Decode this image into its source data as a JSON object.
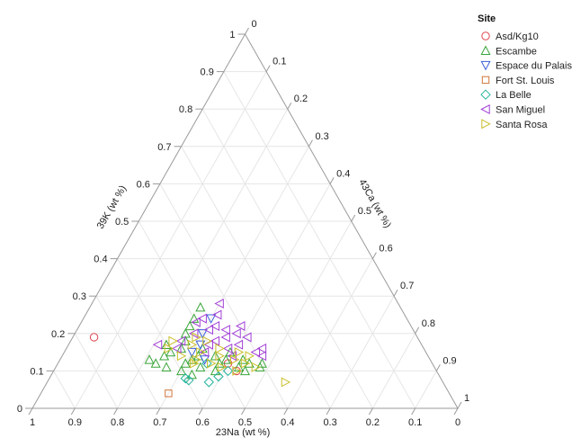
{
  "chart_data": {
    "type": "scatter",
    "subtype": "ternary",
    "axes": {
      "bottom": {
        "label": "23Na (wt %)",
        "ticks": [
          "1",
          "0.9",
          "0.8",
          "0.7",
          "0.6",
          "0.5",
          "0.4",
          "0.3",
          "0.2",
          "0.1",
          "0"
        ]
      },
      "left": {
        "label": "39K (wt %)",
        "ticks": [
          "0",
          "0.1",
          "0.2",
          "0.3",
          "0.4",
          "0.5",
          "0.6",
          "0.7",
          "0.8",
          "0.9",
          "1"
        ]
      },
      "right": {
        "label": "43Ca (wt %)",
        "ticks": [
          "0",
          "0.1",
          "0.2",
          "0.3",
          "0.4",
          "0.5",
          "0.6",
          "0.7",
          "0.8",
          "0.9",
          "1"
        ]
      }
    },
    "grid": true,
    "legend": {
      "title": "Site",
      "position": "top-right"
    },
    "series": [
      {
        "name": "Asd/Kg10",
        "marker": "circle",
        "color": "#e0454f",
        "points": [
          {
            "K": 0.19,
            "Na": 0.76
          },
          {
            "K": 0.1,
            "Na": 0.47
          },
          {
            "K": 0.12,
            "Na": 0.48
          }
        ]
      },
      {
        "name": "Escambe",
        "marker": "triangle-up",
        "color": "#3aa53a",
        "points": [
          {
            "K": 0.27,
            "Na": 0.47
          },
          {
            "K": 0.24,
            "Na": 0.5
          },
          {
            "K": 0.22,
            "Na": 0.52
          },
          {
            "K": 0.2,
            "Na": 0.54
          },
          {
            "K": 0.18,
            "Na": 0.55
          },
          {
            "K": 0.16,
            "Na": 0.57
          },
          {
            "K": 0.15,
            "Na": 0.6
          },
          {
            "K": 0.14,
            "Na": 0.62
          },
          {
            "K": 0.13,
            "Na": 0.66
          },
          {
            "K": 0.12,
            "Na": 0.65
          },
          {
            "K": 0.11,
            "Na": 0.63
          },
          {
            "K": 0.1,
            "Na": 0.6
          },
          {
            "K": 0.12,
            "Na": 0.58
          },
          {
            "K": 0.13,
            "Na": 0.56
          },
          {
            "K": 0.14,
            "Na": 0.54
          },
          {
            "K": 0.11,
            "Na": 0.55
          },
          {
            "K": 0.1,
            "Na": 0.52
          },
          {
            "K": 0.12,
            "Na": 0.5
          },
          {
            "K": 0.13,
            "Na": 0.48
          },
          {
            "K": 0.11,
            "Na": 0.46
          },
          {
            "K": 0.12,
            "Na": 0.43
          },
          {
            "K": 0.1,
            "Na": 0.45
          },
          {
            "K": 0.14,
            "Na": 0.5
          },
          {
            "K": 0.16,
            "Na": 0.52
          },
          {
            "K": 0.15,
            "Na": 0.46
          },
          {
            "K": 0.13,
            "Na": 0.44
          },
          {
            "K": 0.11,
            "Na": 0.41
          },
          {
            "K": 0.12,
            "Na": 0.4
          },
          {
            "K": 0.09,
            "Na": 0.58
          },
          {
            "K": 0.17,
            "Na": 0.6
          }
        ]
      },
      {
        "name": "Espace du Palais",
        "marker": "triangle-down",
        "color": "#3a5fd9",
        "points": [
          {
            "K": 0.24,
            "Na": 0.46
          },
          {
            "K": 0.2,
            "Na": 0.5
          },
          {
            "K": 0.17,
            "Na": 0.52
          },
          {
            "K": 0.15,
            "Na": 0.55
          },
          {
            "K": 0.13,
            "Na": 0.53
          }
        ]
      },
      {
        "name": "Fort St. Louis",
        "marker": "square",
        "color": "#d2763a",
        "points": [
          {
            "K": 0.04,
            "Na": 0.66
          }
        ]
      },
      {
        "name": "La Belle",
        "marker": "diamond",
        "color": "#22b39a",
        "points": [
          {
            "K": 0.08,
            "Na": 0.6
          },
          {
            "K": 0.075,
            "Na": 0.595
          },
          {
            "K": 0.07,
            "Na": 0.55
          },
          {
            "K": 0.085,
            "Na": 0.52
          },
          {
            "K": 0.1,
            "Na": 0.49
          },
          {
            "K": 0.12,
            "Na": 0.53
          }
        ]
      },
      {
        "name": "San Miguel",
        "marker": "triangle-left",
        "color": "#a23fd6",
        "points": [
          {
            "K": 0.28,
            "Na": 0.42
          },
          {
            "K": 0.25,
            "Na": 0.44
          },
          {
            "K": 0.24,
            "Na": 0.48
          },
          {
            "K": 0.23,
            "Na": 0.5
          },
          {
            "K": 0.22,
            "Na": 0.46
          },
          {
            "K": 0.21,
            "Na": 0.44
          },
          {
            "K": 0.2,
            "Na": 0.42
          },
          {
            "K": 0.19,
            "Na": 0.45
          },
          {
            "K": 0.18,
            "Na": 0.48
          },
          {
            "K": 0.17,
            "Na": 0.5
          },
          {
            "K": 0.18,
            "Na": 0.56
          },
          {
            "K": 0.17,
            "Na": 0.62
          },
          {
            "K": 0.16,
            "Na": 0.58
          },
          {
            "K": 0.15,
            "Na": 0.52
          },
          {
            "K": 0.16,
            "Na": 0.46
          },
          {
            "K": 0.17,
            "Na": 0.43
          },
          {
            "K": 0.15,
            "Na": 0.4
          },
          {
            "K": 0.16,
            "Na": 0.38
          },
          {
            "K": 0.14,
            "Na": 0.39
          },
          {
            "K": 0.2,
            "Na": 0.52
          },
          {
            "K": 0.21,
            "Na": 0.48
          },
          {
            "K": 0.19,
            "Na": 0.4
          },
          {
            "K": 0.22,
            "Na": 0.4
          },
          {
            "K": 0.14,
            "Na": 0.46
          }
        ]
      },
      {
        "name": "Santa Rosa",
        "marker": "triangle-right",
        "color": "#c9bf2a",
        "points": [
          {
            "K": 0.18,
            "Na": 0.58
          },
          {
            "K": 0.16,
            "Na": 0.6
          },
          {
            "K": 0.14,
            "Na": 0.58
          },
          {
            "K": 0.13,
            "Na": 0.55
          },
          {
            "K": 0.15,
            "Na": 0.53
          },
          {
            "K": 0.17,
            "Na": 0.54
          },
          {
            "K": 0.12,
            "Na": 0.52
          },
          {
            "K": 0.11,
            "Na": 0.5
          },
          {
            "K": 0.14,
            "Na": 0.49
          },
          {
            "K": 0.13,
            "Na": 0.46
          },
          {
            "K": 0.12,
            "Na": 0.44
          },
          {
            "K": 0.11,
            "Na": 0.42
          },
          {
            "K": 0.1,
            "Na": 0.47
          },
          {
            "K": 0.15,
            "Na": 0.44
          },
          {
            "K": 0.16,
            "Na": 0.48
          },
          {
            "K": 0.18,
            "Na": 0.5
          },
          {
            "K": 0.19,
            "Na": 0.52
          },
          {
            "K": 0.07,
            "Na": 0.37
          },
          {
            "K": 0.12,
            "Na": 0.56
          },
          {
            "K": 0.14,
            "Na": 0.42
          }
        ]
      }
    ]
  }
}
